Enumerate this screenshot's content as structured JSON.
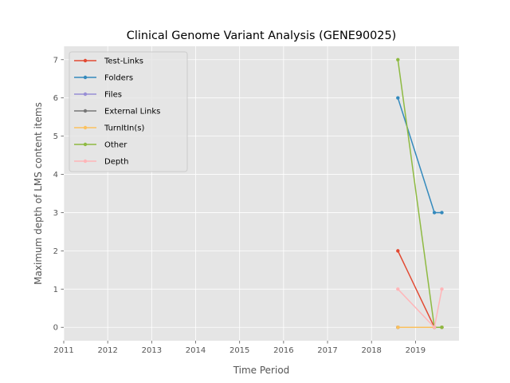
{
  "chart_data": {
    "type": "line",
    "title": "Clinical Genome Variant Analysis (GENE90025)",
    "xlabel": "Time Period",
    "ylabel": "Maximum depth of LMS content items",
    "x_ticks": [
      "2011",
      "2012",
      "2013",
      "2014",
      "2015",
      "2016",
      "2017",
      "2018",
      "2019"
    ],
    "y_ticks": [
      "0",
      "1",
      "2",
      "3",
      "4",
      "5",
      "6",
      "7"
    ],
    "xlim": [
      2011.0,
      2019.99
    ],
    "ylim": [
      -0.35,
      7.35
    ],
    "grid": true,
    "legend_position": "upper-left",
    "background": "#e5e5e5",
    "x": [
      2018.6,
      2019.43,
      2019.6
    ],
    "series": [
      {
        "name": "Test-Links",
        "color": "#e24a33",
        "values": [
          2,
          0,
          0
        ]
      },
      {
        "name": "Folders",
        "color": "#348abd",
        "values": [
          6,
          3,
          3
        ]
      },
      {
        "name": "Files",
        "color": "#988ed5",
        "values": [
          0,
          0,
          0
        ]
      },
      {
        "name": "External Links",
        "color": "#777777",
        "values": [
          0,
          0,
          0
        ]
      },
      {
        "name": "TurnItIn(s)",
        "color": "#fbc15e",
        "values": [
          0,
          0,
          0
        ]
      },
      {
        "name": "Other",
        "color": "#8eba42",
        "values": [
          7,
          0,
          0
        ]
      },
      {
        "name": "Depth",
        "color": "#ffb5b8",
        "values": [
          1,
          0,
          1
        ]
      }
    ]
  }
}
